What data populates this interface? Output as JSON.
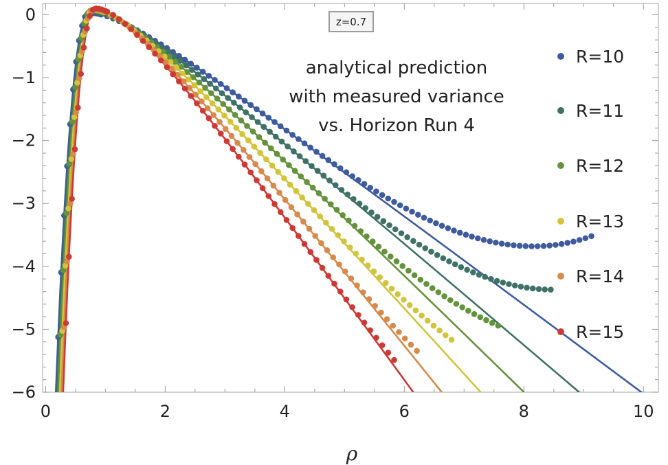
{
  "chart_data": {
    "type": "line",
    "xlabel": "ρ",
    "ylabel": "",
    "xlim": [
      -0.05,
      10.25
    ],
    "ylim": [
      -6,
      0.18
    ],
    "x_ticks": [
      0,
      2,
      4,
      6,
      8,
      10
    ],
    "x_tick_labels": [
      "0",
      "2",
      "4",
      "6",
      "8",
      "10"
    ],
    "y_ticks": [
      0,
      -1,
      -2,
      -3,
      -4,
      -5,
      -6
    ],
    "y_tick_labels": [
      "0",
      "−1",
      "−2",
      "−3",
      "−4",
      "−5",
      "−6"
    ],
    "grid": false,
    "legend_position": "right",
    "badge": "z=0.7",
    "annotation": [
      "analytical prediction",
      "with measured variance",
      "vs. Horizon Run 4"
    ],
    "series": [
      {
        "name": "R=10",
        "color": "#3D5B9E",
        "peak_x": 0.73,
        "peak_y": 0.03,
        "left_x": 0.06,
        "slope": -0.713,
        "points_until_x": 9.2
      },
      {
        "name": "R=11",
        "color": "#3F7266",
        "peak_x": 0.75,
        "peak_y": 0.05,
        "left_x": 0.08,
        "slope": -0.817,
        "points_until_x": 8.45
      },
      {
        "name": "R=12",
        "color": "#64923D",
        "peak_x": 0.77,
        "peak_y": 0.07,
        "left_x": 0.1,
        "slope": -0.938,
        "points_until_x": 7.6
      },
      {
        "name": "R=13",
        "color": "#D3C43B",
        "peak_x": 0.79,
        "peak_y": 0.08,
        "left_x": 0.13,
        "slope": -1.06,
        "points_until_x": 6.85
      },
      {
        "name": "R=14",
        "color": "#D88A4B",
        "peak_x": 0.81,
        "peak_y": 0.09,
        "left_x": 0.16,
        "slope": -1.2,
        "points_until_x": 6.25
      },
      {
        "name": "R=15",
        "color": "#CC3A35",
        "peak_x": 0.83,
        "peak_y": 0.1,
        "left_x": 0.19,
        "slope": -1.33,
        "points_until_x": 5.9
      }
    ]
  }
}
